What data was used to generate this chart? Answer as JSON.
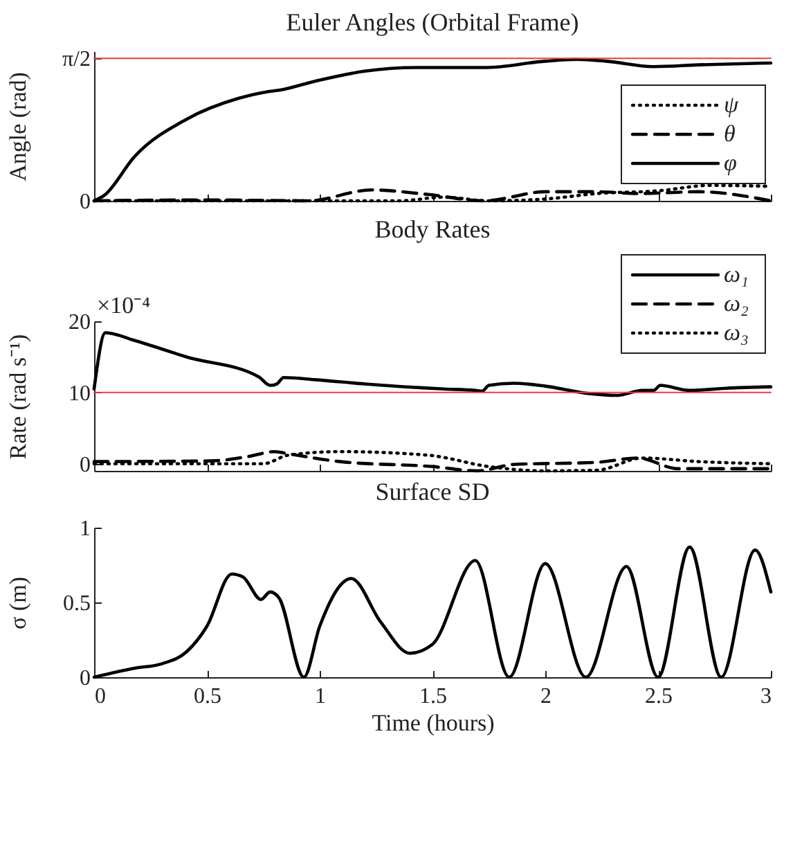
{
  "chart_data": [
    {
      "type": "line",
      "title": "Euler Angles (Orbital Frame)",
      "ylabel": "Angle (rad)",
      "xlim": [
        0,
        3
      ],
      "xticks": [
        0,
        0.5,
        1,
        1.5,
        2,
        2.5,
        3
      ],
      "ylim": [
        0,
        1.65
      ],
      "yticks": [
        0,
        {
          "value": 1.5708,
          "label": "π/2"
        }
      ],
      "tick_labels": "y",
      "legend": "right",
      "ref_lines": [
        {
          "axis": "y",
          "value": 1.5708,
          "color": "#e8403a"
        }
      ],
      "series": [
        {
          "name": "ψ",
          "color": "#000000",
          "line_style": "dotted",
          "x": [
            0,
            0.5,
            1,
            1.35,
            1.55,
            1.75,
            2,
            2.23,
            2.5,
            2.73,
            3
          ],
          "values": [
            0,
            0,
            0,
            0,
            0.04,
            0,
            0.02,
            0.08,
            0.11,
            0.17,
            0.16
          ]
        },
        {
          "name": "θ",
          "color": "#000000",
          "line_style": "dashed",
          "x": [
            0,
            0.5,
            0.95,
            1.23,
            1.48,
            1.73,
            2,
            2.23,
            2.41,
            2.68,
            3
          ],
          "values": [
            0,
            0.01,
            0,
            0.12,
            0.07,
            0,
            0.1,
            0.1,
            0.08,
            0.1,
            0
          ]
        },
        {
          "name": "φ",
          "color": "#000000",
          "line_style": "solid",
          "x": [
            0,
            0.045,
            0.18,
            0.41,
            0.64,
            0.76,
            0.82,
            0.98,
            1.2,
            1.43,
            1.73,
            2,
            2.14,
            2.27,
            2.48,
            2.68,
            3
          ],
          "values": [
            0,
            0.06,
            0.49,
            0.9,
            1.13,
            1.2,
            1.22,
            1.32,
            1.43,
            1.47,
            1.47,
            1.54,
            1.56,
            1.54,
            1.48,
            1.5,
            1.52
          ]
        }
      ]
    },
    {
      "type": "line",
      "title": "Body Rates",
      "ylabel": "Rate (rad s⁻¹)",
      "annotations": [
        "×10⁻⁴"
      ],
      "xlim": [
        0,
        3
      ],
      "xticks": [
        0,
        0.5,
        1,
        1.5,
        2,
        2.5,
        3
      ],
      "ylim": [
        -1,
        20
      ],
      "yticks": [
        0,
        10,
        20
      ],
      "tick_labels": "y",
      "legend": "top right",
      "ref_lines": [
        {
          "axis": "y",
          "value": 10,
          "color": "#e8403a"
        }
      ],
      "series": [
        {
          "name": "ω₁",
          "color": "#000000",
          "line_style": "solid",
          "x": [
            0,
            0.05,
            0.18,
            0.41,
            0.73,
            0.78,
            0.81,
            0.84,
            0.98,
            1.2,
            1.55,
            1.69,
            1.72,
            1.75,
            1.86,
            2,
            2.18,
            2.32,
            2.43,
            2.48,
            2.51,
            2.64,
            2.8,
            3
          ],
          "values": [
            10.5,
            18.4,
            17.3,
            15,
            12.2,
            11,
            11.2,
            12.1,
            11.8,
            11.2,
            10.5,
            10.3,
            10.2,
            11,
            11.3,
            10.9,
            9.9,
            9.6,
            10.3,
            10.3,
            11,
            10.3,
            10.6,
            10.8
          ]
        },
        {
          "name": "ω₂",
          "color": "#000000",
          "line_style": "dashed",
          "x": [
            0,
            0.52,
            0.68,
            0.8,
            0.86,
            1.09,
            1.5,
            1.7,
            1.86,
            2.23,
            2.41,
            2.59,
            3
          ],
          "values": [
            0.3,
            0.4,
            1,
            1.7,
            1.4,
            0.3,
            -0.4,
            -1,
            -0.1,
            0.2,
            0.8,
            -0.7,
            -0.7
          ]
        },
        {
          "name": "ω₃",
          "color": "#000000",
          "line_style": "dotted",
          "x": [
            0,
            0.75,
            0.86,
            1.09,
            1.48,
            1.75,
            2,
            2.23,
            2.43,
            2.68,
            3
          ],
          "values": [
            0,
            0,
            1.2,
            1.7,
            1.2,
            -0.4,
            -1,
            -0.9,
            0.8,
            0.3,
            0
          ]
        }
      ]
    },
    {
      "type": "line",
      "title": "Surface SD",
      "xlabel": "Time (hours)",
      "ylabel": "σ (m)",
      "xlim": [
        0,
        3
      ],
      "xticks": [
        0,
        0.5,
        1,
        1.5,
        2,
        2.5,
        3
      ],
      "ylim": [
        0,
        1
      ],
      "yticks": [
        0,
        0.5,
        1
      ],
      "series": [
        {
          "color": "#000000",
          "line_style": "solid",
          "x": [
            0,
            0.18,
            0.3,
            0.41,
            0.5,
            0.61,
            0.66,
            0.74,
            0.78,
            0.82,
            0.93,
            1,
            1.14,
            1.27,
            1.4,
            1.5,
            1.69,
            1.84,
            2,
            2.18,
            2.36,
            2.5,
            2.64,
            2.78,
            2.93,
            3
          ],
          "values": [
            0,
            0.06,
            0.09,
            0.17,
            0.34,
            0.69,
            0.67,
            0.52,
            0.57,
            0.53,
            0,
            0.34,
            0.66,
            0.37,
            0.16,
            0.22,
            0.78,
            0,
            0.76,
            0,
            0.74,
            0,
            0.87,
            0,
            0.85,
            0.57
          ]
        }
      ]
    }
  ]
}
